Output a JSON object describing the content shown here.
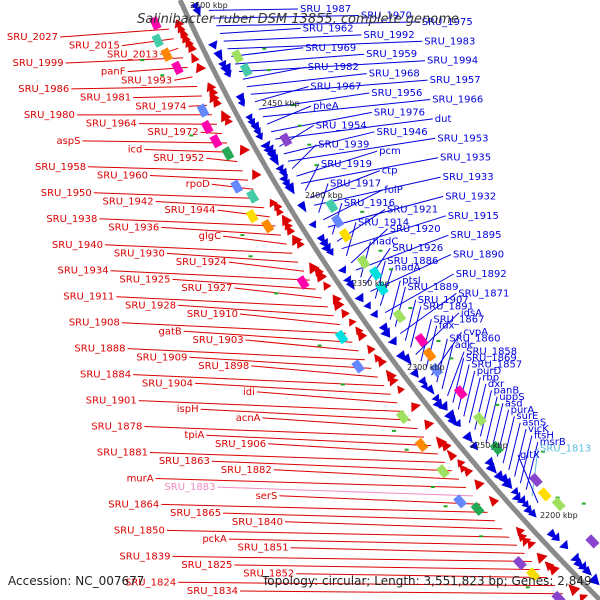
{
  "title": "Salinibacter ruber DSM 13855, complete genome",
  "footer": {
    "accession": "Accession: NC_007677",
    "info": "Topology: circular; Length: 3,551,823 bp; Genes: 2,849"
  },
  "colors": {
    "forward": "#0000dd",
    "reverse": "#dd0000",
    "backbone": "#8a8a8a",
    "pseudo_forward": "#5bbbe0",
    "pseudo_reverse": "#f08ac0",
    "tick": "#22aa22"
  },
  "ticks": [
    {
      "label": "2500 kbp"
    },
    {
      "label": "2450 kbp"
    },
    {
      "label": "2400 kbp"
    },
    {
      "label": "2350 kbp"
    },
    {
      "label": "2300 kbp"
    },
    {
      "label": "2250 kbp"
    },
    {
      "label": "2200 kbp"
    }
  ],
  "left_labels": [
    {
      "text": "SRU_2027"
    },
    {
      "text": "SRU_2015"
    },
    {
      "text": "SRU_2013"
    },
    {
      "text": "SRU_1999"
    },
    {
      "text": "panF"
    },
    {
      "text": "SRU_1993"
    },
    {
      "text": "SRU_1986"
    },
    {
      "text": "SRU_1981"
    },
    {
      "text": "SRU_1974"
    },
    {
      "text": "SRU_1980"
    },
    {
      "text": "SRU_1964"
    },
    {
      "text": "SRU_1972"
    },
    {
      "text": "aspS"
    },
    {
      "text": "icd"
    },
    {
      "text": "SRU_1952"
    },
    {
      "text": "SRU_1958"
    },
    {
      "text": "SRU_1960"
    },
    {
      "text": "rpoD"
    },
    {
      "text": "SRU_1950"
    },
    {
      "text": "SRU_1942"
    },
    {
      "text": "SRU_1944"
    },
    {
      "text": "SRU_1938"
    },
    {
      "text": "SRU_1936"
    },
    {
      "text": "glgC"
    },
    {
      "text": "SRU_1940"
    },
    {
      "text": "SRU_1930"
    },
    {
      "text": "SRU_1924"
    },
    {
      "text": "SRU_1934"
    },
    {
      "text": "SRU_1925"
    },
    {
      "text": "SRU_1927"
    },
    {
      "text": "SRU_1911"
    },
    {
      "text": "SRU_1928"
    },
    {
      "text": "SRU_1910"
    },
    {
      "text": "SRU_1908"
    },
    {
      "text": "gatB"
    },
    {
      "text": "SRU_1903"
    },
    {
      "text": "SRU_1888"
    },
    {
      "text": "SRU_1909"
    },
    {
      "text": "SRU_1898"
    },
    {
      "text": "SRU_1884"
    },
    {
      "text": "SRU_1904"
    },
    {
      "text": "idi"
    },
    {
      "text": "SRU_1901"
    },
    {
      "text": "ispH"
    },
    {
      "text": "acnA"
    },
    {
      "text": "SRU_1878"
    },
    {
      "text": "tpiA"
    },
    {
      "text": "SRU_1906"
    },
    {
      "text": "SRU_1881"
    },
    {
      "text": "SRU_1863"
    },
    {
      "text": "SRU_1882"
    },
    {
      "text": "murA"
    },
    {
      "text": "SRU_1883",
      "pseudo": true
    },
    {
      "text": "serS"
    },
    {
      "text": "SRU_1864"
    },
    {
      "text": "SRU_1865"
    },
    {
      "text": "SRU_1840"
    },
    {
      "text": "SRU_1850"
    },
    {
      "text": "pckA"
    },
    {
      "text": "SRU_1851"
    },
    {
      "text": "SRU_1839"
    },
    {
      "text": "SRU_1825"
    },
    {
      "text": "SRU_1852"
    },
    {
      "text": "SRU_1824"
    },
    {
      "text": "SRU_1834"
    }
  ],
  "right_labels": [
    {
      "text": "SRU_1987"
    },
    {
      "text": "SRU_1970"
    },
    {
      "text": "SRU_1975"
    },
    {
      "text": "SRU_1962"
    },
    {
      "text": "SRU_1992"
    },
    {
      "text": "SRU_1983"
    },
    {
      "text": "SRU_1969"
    },
    {
      "text": "SRU_1959"
    },
    {
      "text": "SRU_1994"
    },
    {
      "text": "SRU_1982"
    },
    {
      "text": "SRU_1968"
    },
    {
      "text": "SRU_1957"
    },
    {
      "text": "SRU_1967"
    },
    {
      "text": "SRU_1956"
    },
    {
      "text": "SRU_1966"
    },
    {
      "text": "pheA"
    },
    {
      "text": "SRU_1976"
    },
    {
      "text": "dut"
    },
    {
      "text": "SRU_1954"
    },
    {
      "text": "SRU_1946"
    },
    {
      "text": "SRU_1953"
    },
    {
      "text": "SRU_1939"
    },
    {
      "text": "pcm"
    },
    {
      "text": "SRU_1935"
    },
    {
      "text": "SRU_1919"
    },
    {
      "text": "ctp"
    },
    {
      "text": "SRU_1933"
    },
    {
      "text": "SRU_1917"
    },
    {
      "text": "folP"
    },
    {
      "text": "SRU_1932"
    },
    {
      "text": "SRU_1916"
    },
    {
      "text": "SRU_1921"
    },
    {
      "text": "SRU_1915"
    },
    {
      "text": "SRU_1914"
    },
    {
      "text": "SRU_1920"
    },
    {
      "text": "SRU_1895"
    },
    {
      "text": "nadC"
    },
    {
      "text": "SRU_1926"
    },
    {
      "text": "SRU_1890"
    },
    {
      "text": "SRU_1886"
    },
    {
      "text": "nadA"
    },
    {
      "text": "SRU_1892"
    },
    {
      "text": "ptsI"
    },
    {
      "text": "SRU_1889"
    },
    {
      "text": "SRU_1871"
    },
    {
      "text": "SRU_1907"
    },
    {
      "text": "SRU_1891"
    },
    {
      "text": "idsA"
    },
    {
      "text": "SRU_1867"
    },
    {
      "text": "fdx"
    },
    {
      "text": "cvpA"
    },
    {
      "text": "SRU_1860"
    },
    {
      "text": "adk"
    },
    {
      "text": "SRU_1858"
    },
    {
      "text": "SRU_1869"
    },
    {
      "text": "SRU_1857"
    },
    {
      "text": "purD"
    },
    {
      "text": "rbp"
    },
    {
      "text": "dxr"
    },
    {
      "text": "panB"
    },
    {
      "text": "uppS"
    },
    {
      "text": "asd"
    },
    {
      "text": "purA"
    },
    {
      "text": "surE"
    },
    {
      "text": "asnS"
    },
    {
      "text": "vicK"
    },
    {
      "text": "ftsH"
    },
    {
      "text": "msrB"
    },
    {
      "text": "SRU_1813",
      "pseudo": true
    },
    {
      "text": "gltX"
    }
  ]
}
